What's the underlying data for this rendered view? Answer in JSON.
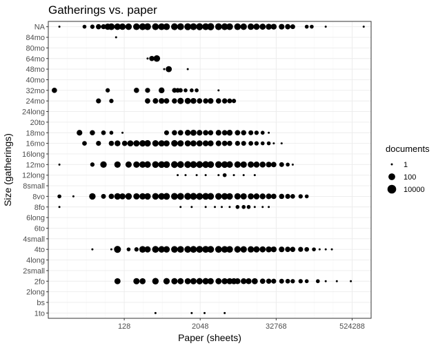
{
  "chart_data": {
    "type": "scatter",
    "title": "Gatherings vs. paper",
    "xlabel": "Paper (sheets)",
    "ylabel": "Size (gatherings)",
    "x_scale": "log2",
    "xlim": [
      8,
      1048576
    ],
    "x_ticks": [
      128,
      2048,
      32768,
      524288
    ],
    "x_tick_labels": [
      "128",
      "2048",
      "32768",
      "524288"
    ],
    "categories": [
      "1to",
      "bs",
      "2long",
      "2fo",
      "2small",
      "4long",
      "4to",
      "4small",
      "6to",
      "6long",
      "8fo",
      "8vo",
      "8small",
      "12long",
      "12mo",
      "16long",
      "16mo",
      "18mo",
      "20to",
      "24long",
      "24mo",
      "32mo",
      "40mo",
      "48mo",
      "64mo",
      "80mo",
      "84mo",
      "NA"
    ],
    "grid": true,
    "legend": {
      "title": "documents",
      "position": "right",
      "entries": [
        {
          "label": "1",
          "value": 1
        },
        {
          "label": "100",
          "value": 100
        },
        {
          "label": "10000",
          "value": 10000
        }
      ]
    },
    "size_scale": "area",
    "series": [
      {
        "category": "1to",
        "x": [
          400,
          1500,
          2400,
          5000
        ],
        "documents": [
          1,
          1,
          1,
          1
        ]
      },
      {
        "category": "2fo",
        "x": [
          100,
          200,
          250,
          400,
          600,
          800,
          1000,
          1300,
          1600,
          2000,
          2500,
          3000,
          4000,
          5000,
          6000,
          7000,
          8000,
          10000,
          12000,
          15000,
          20000,
          25000,
          30000,
          40000,
          50000,
          60000,
          80000,
          100000,
          150000,
          200000,
          300000,
          500000
        ],
        "documents": [
          30,
          40,
          25,
          60,
          50,
          40,
          35,
          30,
          40,
          45,
          50,
          40,
          35,
          30,
          30,
          25,
          20,
          20,
          20,
          30,
          10,
          8,
          6,
          5,
          4,
          3,
          3,
          2,
          2,
          1,
          1,
          1
        ]
      },
      {
        "category": "4to",
        "x": [
          40,
          80,
          100,
          150,
          200,
          250,
          300,
          400,
          500,
          600,
          800,
          1000,
          1300,
          1600,
          2000,
          2500,
          3000,
          4000,
          5000,
          6000,
          8000,
          10000,
          13000,
          16000,
          20000,
          25000,
          30000,
          40000,
          50000,
          60000,
          80000,
          100000,
          130000,
          160000,
          200000,
          250000
        ],
        "documents": [
          1,
          1,
          150,
          2,
          3,
          80,
          40,
          100,
          70,
          60,
          80,
          90,
          100,
          110,
          120,
          120,
          110,
          100,
          90,
          80,
          70,
          60,
          50,
          40,
          30,
          25,
          20,
          15,
          10,
          8,
          6,
          4,
          2,
          1,
          1,
          1
        ]
      },
      {
        "category": "8fo",
        "x": [
          12,
          1000,
          1500,
          2500,
          3500,
          4500,
          6000,
          8000,
          10000,
          12000,
          15000,
          20000,
          25000
        ],
        "documents": [
          1,
          1,
          1,
          1,
          1,
          1,
          1,
          2,
          2,
          2,
          1,
          1,
          1
        ]
      },
      {
        "category": "8vo",
        "x": [
          12,
          20,
          40,
          60,
          80,
          100,
          120,
          150,
          200,
          250,
          300,
          400,
          500,
          600,
          800,
          1000,
          1300,
          1600,
          2000,
          2500,
          3000,
          4000,
          5000,
          6000,
          8000,
          10000,
          13000,
          16000,
          20000,
          25000,
          30000,
          40000,
          50000,
          60000,
          80000,
          100000
        ],
        "documents": [
          2,
          1,
          60,
          5,
          10,
          60,
          30,
          70,
          40,
          50,
          60,
          70,
          80,
          90,
          100,
          110,
          120,
          120,
          110,
          100,
          90,
          80,
          70,
          60,
          50,
          40,
          30,
          25,
          20,
          15,
          10,
          8,
          6,
          4,
          3,
          2
        ]
      },
      {
        "category": "12long",
        "x": [
          900,
          1200,
          1800,
          2500,
          4000,
          5000,
          7000,
          10000,
          15000
        ],
        "documents": [
          1,
          1,
          1,
          1,
          1,
          2,
          1,
          1,
          1
        ]
      },
      {
        "category": "12mo",
        "x": [
          12,
          40,
          60,
          100,
          150,
          200,
          250,
          300,
          400,
          500,
          600,
          800,
          1000,
          1300,
          1600,
          2000,
          2500,
          3000,
          4000,
          5000,
          6000,
          8000,
          10000,
          13000,
          16000,
          20000,
          25000,
          30000,
          40000,
          50000,
          60000
        ],
        "documents": [
          1,
          3,
          60,
          50,
          40,
          50,
          60,
          70,
          80,
          90,
          90,
          100,
          100,
          110,
          110,
          100,
          100,
          90,
          90,
          80,
          70,
          60,
          50,
          40,
          30,
          25,
          15,
          10,
          5,
          2,
          1
        ]
      },
      {
        "category": "16mo",
        "x": [
          30,
          50,
          80,
          100,
          130,
          160,
          200,
          250,
          300,
          400,
          500,
          600,
          800,
          1000,
          1300,
          1600,
          2000,
          2500,
          3000,
          4000,
          5000,
          6000,
          8000,
          10000,
          13000,
          16000,
          20000,
          25000,
          30000,
          40000
        ],
        "documents": [
          4,
          6,
          8,
          20,
          10,
          30,
          40,
          50,
          60,
          50,
          40,
          30,
          60,
          40,
          30,
          30,
          30,
          20,
          20,
          15,
          10,
          8,
          6,
          5,
          4,
          3,
          2,
          2,
          1,
          1
        ]
      },
      {
        "category": "18mo",
        "x": [
          25,
          40,
          60,
          80,
          120,
          600,
          800,
          1000,
          1300,
          1600,
          2000,
          2500,
          3000,
          4000,
          5000,
          6000,
          8000,
          10000,
          13000,
          16000,
          20000,
          25000
        ],
        "documents": [
          15,
          8,
          4,
          2,
          1,
          5,
          8,
          10,
          20,
          30,
          15,
          10,
          8,
          15,
          10,
          20,
          10,
          8,
          5,
          3,
          2,
          1
        ]
      },
      {
        "category": "24mo",
        "x": [
          50,
          80,
          300,
          400,
          500,
          600,
          800,
          1000,
          1300,
          1600,
          2000,
          2500,
          3000,
          4000,
          5000,
          6000,
          7000
        ],
        "documents": [
          6,
          3,
          10,
          12,
          15,
          10,
          8,
          40,
          30,
          20,
          10,
          8,
          15,
          10,
          8,
          5,
          3
        ]
      },
      {
        "category": "32mo",
        "x": [
          10,
          70,
          200,
          300,
          500,
          800,
          900,
          1000,
          1200,
          1500,
          1800,
          4000
        ],
        "documents": [
          8,
          3,
          8,
          6,
          20,
          5,
          4,
          3,
          2,
          2,
          2,
          1
        ]
      },
      {
        "category": "48mo",
        "x": [
          550,
          650,
          1300
        ],
        "documents": [
          1,
          30,
          1
        ]
      },
      {
        "category": "64mo",
        "x": [
          300,
          350,
          420
        ],
        "documents": [
          1,
          8,
          70
        ]
      },
      {
        "category": "84mo",
        "x": [
          95
        ],
        "documents": [
          1
        ]
      },
      {
        "category": "NA",
        "x": [
          12,
          30,
          40,
          50,
          60,
          70,
          80,
          100,
          120,
          150,
          200,
          250,
          300,
          400,
          500,
          600,
          800,
          1000,
          1300,
          1600,
          2000,
          2500,
          3000,
          4000,
          5000,
          6000,
          8000,
          10000,
          13000,
          16000,
          20000,
          25000,
          30000,
          40000,
          50000,
          60000,
          100000,
          120000,
          200000,
          800000
        ],
        "documents": [
          1,
          2,
          3,
          8,
          6,
          40,
          80,
          60,
          50,
          60,
          80,
          100,
          120,
          100,
          90,
          80,
          100,
          120,
          130,
          120,
          140,
          120,
          200,
          120,
          100,
          90,
          80,
          60,
          50,
          40,
          30,
          25,
          20,
          15,
          10,
          5,
          2,
          2,
          1,
          1
        ]
      }
    ]
  }
}
